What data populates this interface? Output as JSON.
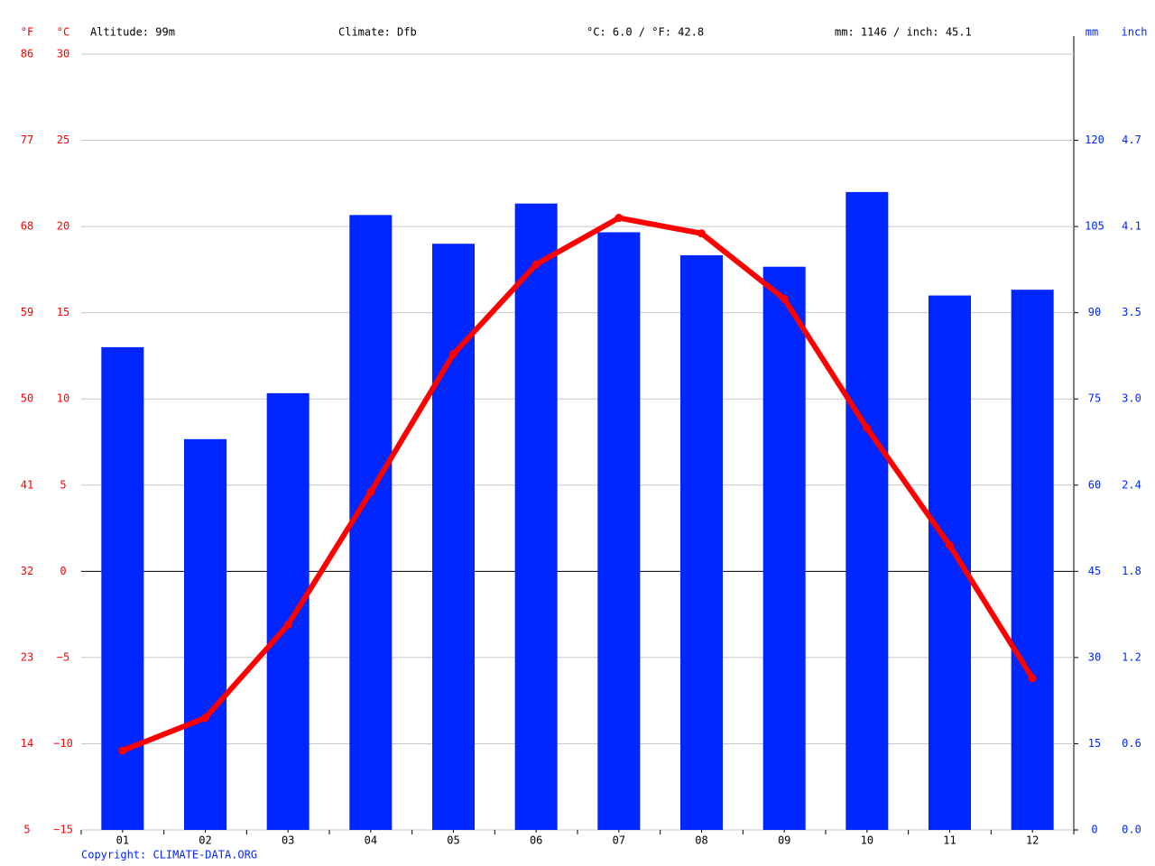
{
  "chart_data": {
    "type": "climate",
    "annotations": [
      "Altitude: 99m",
      "Climate: Dfb",
      "°C: 6.0 / °F: 42.8",
      "mm: 1146 / inch: 45.1"
    ],
    "source": "Copyright: CLIMATE-DATA.ORG",
    "categories": [
      "01",
      "02",
      "03",
      "04",
      "05",
      "06",
      "07",
      "08",
      "09",
      "10",
      "11",
      "12"
    ],
    "temperature": {
      "color": "#ff0000",
      "values": [
        -10.4,
        -8.5,
        -3.1,
        4.6,
        12.6,
        17.8,
        20.5,
        19.6,
        15.8,
        8.3,
        1.5,
        -6.2
      ]
    },
    "precipitation": {
      "color": "#0026ff",
      "axis": "y2",
      "values": [
        84,
        68,
        76,
        107,
        102,
        109,
        104,
        100,
        98,
        111,
        93,
        94
      ]
    },
    "ylabel": "°C",
    "ylim": [
      -15,
      30
    ],
    "yticks": [
      {
        "value": -15,
        "label": "−15"
      },
      {
        "value": -10,
        "label": "−10"
      },
      {
        "value": -5,
        "label": "−5"
      },
      0,
      5,
      10,
      15,
      20,
      25,
      30
    ],
    "yflabel": "°F",
    "yflim": [
      5,
      86
    ],
    "yfticks": [
      5,
      14,
      23,
      32,
      41,
      50,
      59,
      68,
      77,
      86
    ],
    "y2label": "mm",
    "y2lim": [
      0,
      135
    ],
    "y2ticks": [
      0,
      15,
      30,
      45,
      60,
      75,
      90,
      105,
      120
    ],
    "y3label": "inch",
    "y3lim": [
      0,
      5.315
    ],
    "y3ticks": [
      {
        "value": 0,
        "label": "0.0"
      },
      {
        "value": 0.591,
        "label": "0.6"
      },
      {
        "value": 1.181,
        "label": "1.2"
      },
      {
        "value": 1.772,
        "label": "1.8"
      },
      {
        "value": 2.362,
        "label": "2.4"
      },
      {
        "value": 2.953,
        "label": "3.0"
      },
      {
        "value": 3.543,
        "label": "3.5"
      },
      {
        "value": 4.134,
        "label": "4.1"
      },
      {
        "value": 4.724,
        "label": "4.7"
      }
    ],
    "grid": true
  }
}
